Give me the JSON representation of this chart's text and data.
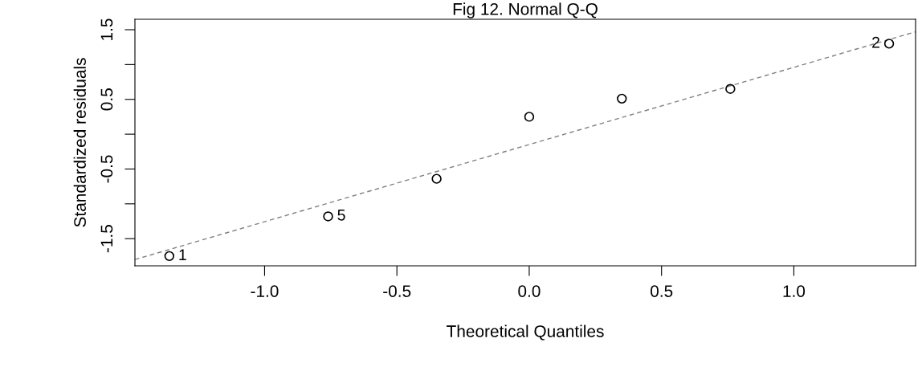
{
  "chart_data": {
    "type": "scatter",
    "title": "Fig 12. Normal Q-Q",
    "xlabel": "Theoretical Quantiles",
    "ylabel": "Standardized residuals",
    "series": [
      {
        "color": "#000000",
        "marker": "circle",
        "x": [
          -1.36,
          -0.76,
          -0.35,
          0.0,
          0.35,
          0.76,
          1.36
        ],
        "values": [
          -1.75,
          -1.18,
          -0.64,
          0.25,
          0.51,
          0.65,
          1.3
        ]
      },
      {
        "type": "line",
        "color": "#808080",
        "line_style": "dashed",
        "marker": "none",
        "x": [
          -1.49,
          1.46
        ],
        "values": [
          -1.8,
          1.47
        ]
      }
    ],
    "annotations": [
      {
        "text": "1",
        "x": -1.36,
        "y": -1.75
      },
      {
        "text": "5",
        "x": -0.76,
        "y": -1.18
      },
      {
        "text": "2",
        "x": 1.36,
        "y": 1.3
      }
    ],
    "xlim": [
      -1.49,
      1.46
    ],
    "ylim": [
      -1.89,
      1.65
    ],
    "xticks": [
      {
        "value": -1.0,
        "label": "-1.0"
      },
      {
        "value": -0.5,
        "label": "-0.5"
      },
      {
        "value": 0.0,
        "label": "0.0"
      },
      {
        "value": 0.5,
        "label": "0.5"
      },
      {
        "value": 1.0,
        "label": "1.0"
      }
    ],
    "yticks": [
      {
        "value": -1.5,
        "label": "-1.5"
      },
      {
        "value": -1.0,
        "label": null
      },
      {
        "value": -0.5,
        "label": "-0.5"
      },
      {
        "value": 0.0,
        "label": null
      },
      {
        "value": 0.5,
        "label": "0.5"
      },
      {
        "value": 1.0,
        "label": null
      },
      {
        "value": 1.5,
        "label": "1.5"
      }
    ],
    "grid": false
  }
}
